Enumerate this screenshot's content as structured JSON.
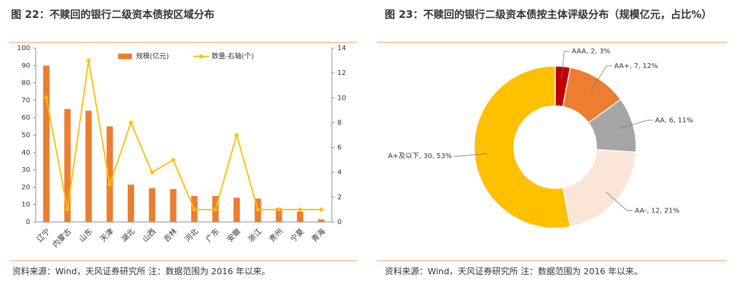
{
  "chart_data": [
    {
      "type": "bar",
      "title": "图 22：不赎回的银行二级资本债按区域分布",
      "categories": [
        "辽宁",
        "内蒙古",
        "山东",
        "天津",
        "湖北",
        "山西",
        "吉林",
        "河北",
        "广东",
        "安徽",
        "浙江",
        "贵州",
        "宁夏",
        "青海"
      ],
      "series": [
        {
          "name": "规模(亿元)",
          "type": "bar",
          "color": "#ED7D31",
          "values": [
            90,
            65,
            64,
            55,
            21.5,
            19.5,
            19,
            15,
            15,
            14,
            13.5,
            8,
            6,
            1.5
          ]
        },
        {
          "name": "数量-右轴(个)",
          "type": "line",
          "axis": "y2",
          "color": "#FFC000",
          "values": [
            10,
            1,
            13,
            3,
            8,
            4,
            5,
            1,
            1,
            7,
            1,
            1,
            1,
            1
          ]
        }
      ],
      "ylim": [
        0,
        100
      ],
      "yticks": [
        0,
        10,
        20,
        30,
        40,
        50,
        60,
        70,
        80,
        90,
        100
      ],
      "y2lim": [
        0,
        14
      ],
      "y2ticks": [
        0,
        2,
        4,
        6,
        8,
        10,
        12,
        14
      ],
      "legend": "top",
      "source": "资料来源：Wind，天风证券研究所 注：数据范围为 2016 年以来。"
    },
    {
      "type": "pie",
      "title": "图 23：不赎回的银行二级资本债按主体评级分布（规模亿元，占比%）",
      "values": [
        3,
        12,
        11,
        21,
        53
      ],
      "value_labels": [
        "AAA, 2, 3%",
        "AA+, 7, 12%",
        "AA, 6, 11%",
        "AA-, 12, 21%",
        "A+及以下, 30, 53%"
      ],
      "colors": [
        "#C00000",
        "#ED7D31",
        "#A5A5A5",
        "#FBE5D6",
        "#FFC000"
      ],
      "source": "资料来源：Wind，天风证券研究所 注：数据范围为 2016 年以来。"
    }
  ]
}
